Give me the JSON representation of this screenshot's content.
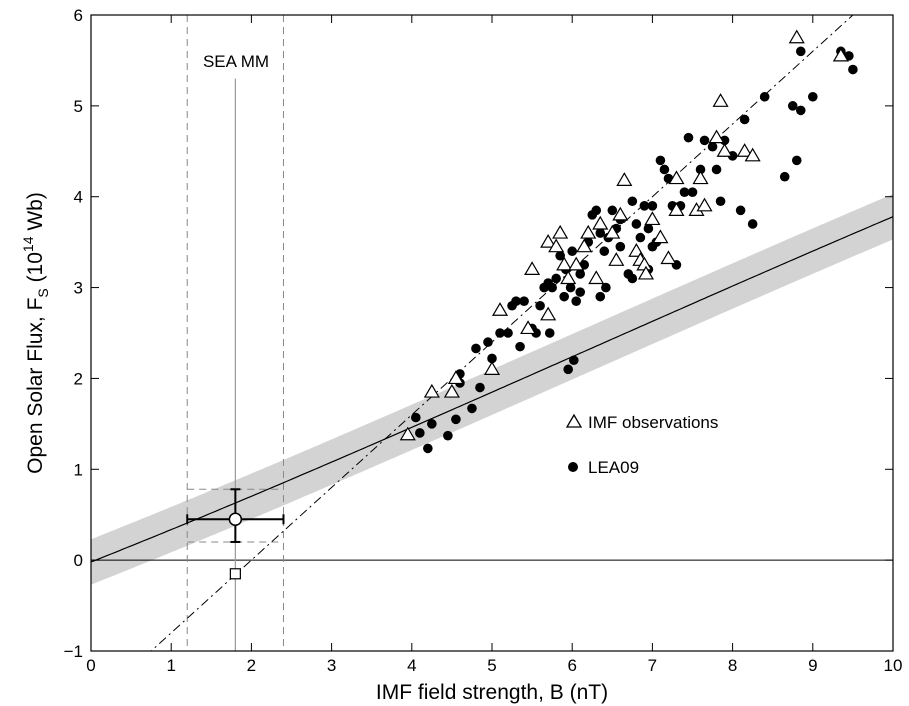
{
  "chart_data": {
    "type": "scatter",
    "xlabel": "IMF field strength, B (nT)",
    "ylabel_main": "Open Solar Flux, F",
    "ylabel_sub": "S",
    "ylabel_unit_open": " (10",
    "ylabel_unit_exp": "14",
    "ylabel_unit_close": " Wb)",
    "xlim": [
      0,
      10
    ],
    "ylim": [
      -1,
      6
    ],
    "xticks": [
      "0",
      "1",
      "2",
      "3",
      "4",
      "5",
      "6",
      "7",
      "8",
      "9",
      "10"
    ],
    "yticks": [
      "−1",
      "0",
      "1",
      "2",
      "3",
      "4",
      "5",
      "6"
    ],
    "grid": false,
    "legend_position": "center-right",
    "annotation": "SEA MM",
    "series": [
      {
        "name": "IMF observations",
        "marker": "open-triangle",
        "points": [
          [
            3.95,
            1.38
          ],
          [
            4.25,
            1.85
          ],
          [
            4.5,
            1.85
          ],
          [
            4.55,
            2.0
          ],
          [
            5.0,
            2.1
          ],
          [
            5.1,
            2.75
          ],
          [
            5.45,
            2.55
          ],
          [
            5.5,
            3.2
          ],
          [
            5.7,
            2.7
          ],
          [
            5.7,
            3.5
          ],
          [
            5.8,
            3.45
          ],
          [
            5.85,
            3.6
          ],
          [
            5.9,
            3.25
          ],
          [
            5.95,
            3.1
          ],
          [
            6.05,
            3.25
          ],
          [
            6.15,
            3.45
          ],
          [
            6.2,
            3.6
          ],
          [
            6.3,
            3.1
          ],
          [
            6.35,
            3.7
          ],
          [
            6.5,
            3.6
          ],
          [
            6.55,
            3.3
          ],
          [
            6.6,
            3.8
          ],
          [
            6.65,
            4.18
          ],
          [
            6.8,
            3.4
          ],
          [
            6.85,
            3.3
          ],
          [
            6.9,
            3.25
          ],
          [
            6.92,
            3.15
          ],
          [
            7.0,
            3.75
          ],
          [
            7.1,
            3.55
          ],
          [
            7.2,
            3.32
          ],
          [
            7.3,
            3.85
          ],
          [
            7.3,
            4.2
          ],
          [
            7.55,
            3.85
          ],
          [
            7.6,
            4.2
          ],
          [
            7.65,
            3.9
          ],
          [
            7.8,
            4.65
          ],
          [
            7.85,
            5.05
          ],
          [
            7.9,
            4.5
          ],
          [
            8.15,
            4.5
          ],
          [
            8.25,
            4.45
          ],
          [
            8.8,
            5.75
          ],
          [
            9.35,
            5.55
          ]
        ],
        "color": "#000000"
      },
      {
        "name": "LEA09",
        "marker": "filled-circle",
        "points": [
          [
            4.05,
            1.57
          ],
          [
            4.1,
            1.4
          ],
          [
            4.2,
            1.23
          ],
          [
            4.25,
            1.5
          ],
          [
            4.45,
            1.37
          ],
          [
            4.55,
            1.55
          ],
          [
            4.6,
            1.95
          ],
          [
            4.6,
            2.05
          ],
          [
            4.75,
            1.67
          ],
          [
            4.8,
            2.33
          ],
          [
            4.85,
            1.9
          ],
          [
            4.95,
            2.4
          ],
          [
            5.0,
            2.22
          ],
          [
            5.1,
            2.5
          ],
          [
            5.2,
            2.5
          ],
          [
            5.25,
            2.8
          ],
          [
            5.3,
            2.85
          ],
          [
            5.35,
            2.35
          ],
          [
            5.4,
            2.85
          ],
          [
            5.5,
            2.55
          ],
          [
            5.55,
            2.5
          ],
          [
            5.6,
            2.8
          ],
          [
            5.65,
            3.0
          ],
          [
            5.7,
            3.05
          ],
          [
            5.72,
            2.5
          ],
          [
            5.75,
            3.0
          ],
          [
            5.8,
            3.1
          ],
          [
            5.85,
            3.35
          ],
          [
            5.9,
            2.9
          ],
          [
            5.95,
            2.1
          ],
          [
            5.98,
            3.0
          ],
          [
            6.0,
            3.4
          ],
          [
            6.02,
            2.2
          ],
          [
            6.05,
            2.85
          ],
          [
            6.1,
            2.95
          ],
          [
            6.15,
            3.25
          ],
          [
            6.2,
            3.5
          ],
          [
            6.25,
            3.8
          ],
          [
            6.3,
            3.85
          ],
          [
            6.35,
            2.9
          ],
          [
            6.4,
            3.4
          ],
          [
            6.45,
            3.55
          ],
          [
            6.5,
            3.85
          ],
          [
            6.55,
            3.65
          ],
          [
            6.6,
            3.75
          ],
          [
            6.6,
            3.45
          ],
          [
            6.7,
            3.15
          ],
          [
            6.75,
            3.95
          ],
          [
            6.8,
            3.7
          ],
          [
            6.85,
            3.55
          ],
          [
            6.9,
            3.9
          ],
          [
            6.95,
            3.65
          ],
          [
            7.0,
            3.9
          ],
          [
            7.05,
            3.5
          ],
          [
            7.1,
            4.4
          ],
          [
            7.15,
            4.3
          ],
          [
            7.2,
            4.2
          ],
          [
            7.25,
            3.9
          ],
          [
            7.3,
            3.25
          ],
          [
            7.35,
            3.9
          ],
          [
            7.4,
            4.05
          ],
          [
            7.5,
            4.05
          ],
          [
            7.6,
            4.3
          ],
          [
            7.65,
            4.62
          ],
          [
            7.75,
            4.55
          ],
          [
            7.8,
            4.3
          ],
          [
            7.85,
            3.95
          ],
          [
            7.9,
            4.62
          ],
          [
            8.0,
            4.45
          ],
          [
            8.1,
            3.85
          ],
          [
            8.15,
            4.85
          ],
          [
            8.25,
            3.7
          ],
          [
            8.4,
            5.1
          ],
          [
            8.65,
            4.22
          ],
          [
            8.75,
            5.0
          ],
          [
            8.8,
            4.4
          ],
          [
            8.85,
            4.95
          ],
          [
            8.85,
            5.6
          ],
          [
            9.0,
            5.1
          ],
          [
            9.35,
            5.6
          ],
          [
            9.45,
            5.55
          ],
          [
            9.5,
            5.4
          ],
          [
            7.45,
            4.65
          ],
          [
            6.42,
            3.0
          ],
          [
            6.75,
            3.1
          ],
          [
            7.0,
            3.45
          ],
          [
            5.92,
            3.2
          ],
          [
            6.35,
            3.6
          ],
          [
            6.95,
            3.2
          ],
          [
            6.1,
            3.15
          ]
        ],
        "color": "#000000"
      }
    ],
    "fit_curve": {
      "name": "fit",
      "coeffs": [
        -0.02,
        0.35,
        0.0065,
        -0.00035
      ],
      "band_halfwidth": 0.25
    },
    "linear_fit": {
      "name": "linear fit",
      "slope": 0.8,
      "intercept": -1.6
    },
    "sea_mm": {
      "x": 1.8,
      "x_err": [
        1.2,
        2.4
      ],
      "y": 0.45,
      "y_err": [
        0.2,
        0.78
      ],
      "square_y": -0.15
    }
  }
}
